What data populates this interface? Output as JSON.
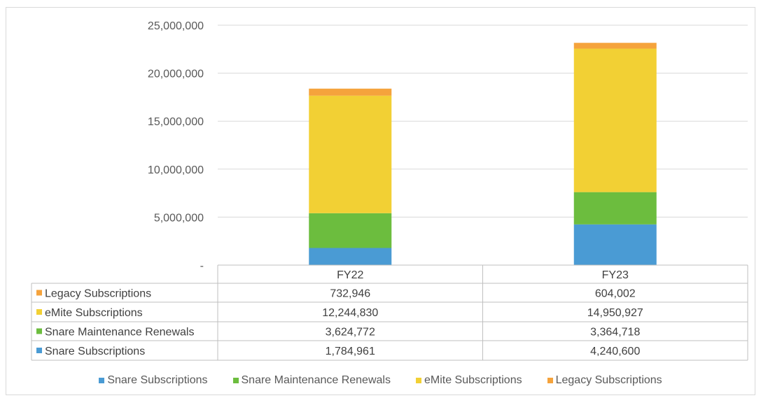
{
  "chart_data": {
    "type": "bar",
    "stacked": true,
    "categories": [
      "FY22",
      "FY23"
    ],
    "series": [
      {
        "name": "Snare Subscriptions",
        "values": [
          1784961,
          4240600
        ],
        "color": "#4a9bd4",
        "display": [
          "1,784,961",
          "4,240,600"
        ]
      },
      {
        "name": "Snare Maintenance Renewals",
        "values": [
          3624772,
          3364718
        ],
        "color": "#6cbd3e",
        "display": [
          "3,624,772",
          "3,364,718"
        ]
      },
      {
        "name": "eMite Subscriptions",
        "values": [
          12244830,
          14950927
        ],
        "color": "#f2d034",
        "display": [
          "12,244,830",
          "14,950,927"
        ]
      },
      {
        "name": "Legacy Subscriptions",
        "values": [
          732946,
          604002
        ],
        "color": "#f5a33c",
        "display": [
          "732,946",
          "604,002"
        ]
      }
    ],
    "ylim": [
      0,
      25000000
    ],
    "yticks": [
      0,
      5000000,
      10000000,
      15000000,
      20000000,
      25000000
    ],
    "ytick_labels": [
      "-",
      "5,000,000",
      "10,000,000",
      "15,000,000",
      "20,000,000",
      "25,000,000"
    ],
    "grid": true,
    "data_table": true,
    "legend_position": "bottom"
  }
}
